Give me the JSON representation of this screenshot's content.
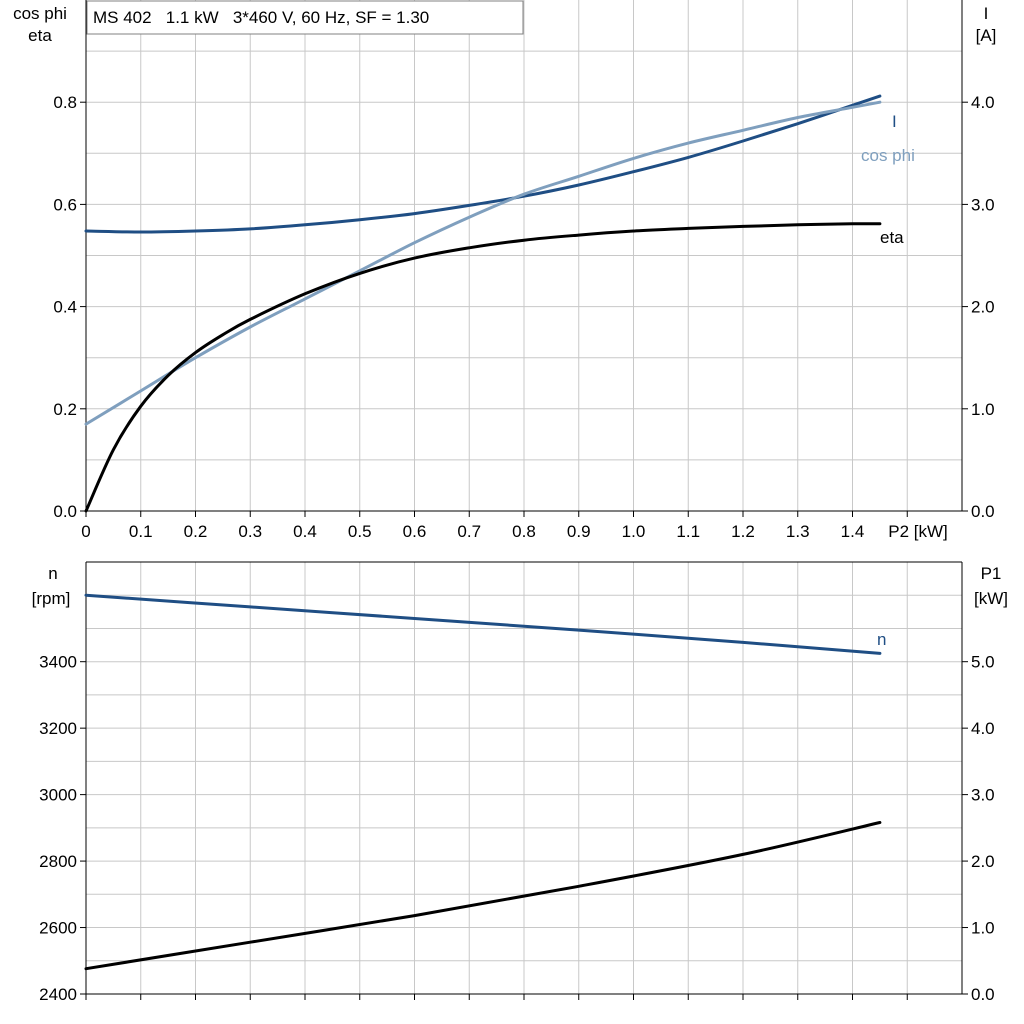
{
  "colors": {
    "I": "#1f4e84",
    "cos_phi": "#7f9fbe",
    "eta": "#000000",
    "n": "#1f4e84",
    "P1": "#000000",
    "grid": "#c8c8c8"
  },
  "chart_data": [
    {
      "type": "line",
      "title": "MS 402   1.1 kW   3*460 V, 60 Hz, SF = 1.30",
      "xlabel": "P2 [kW]",
      "ylabel_left": [
        "cos phi",
        "eta"
      ],
      "ylabel_right": [
        "I",
        "[A]"
      ],
      "xlim": [
        0,
        1.6
      ],
      "ylim_left": [
        0,
        1.0
      ],
      "ylim_right": [
        0,
        5.0
      ],
      "x_ticks": [
        0,
        0.1,
        0.2,
        0.3,
        0.4,
        0.5,
        0.6,
        0.7,
        0.8,
        0.9,
        1.0,
        1.1,
        1.2,
        1.3,
        1.4
      ],
      "x_tick_labels": [
        "0",
        "0.1",
        "0.2",
        "0.3",
        "0.4",
        "0.5",
        "0.6",
        "0.7",
        "0.8",
        "0.9",
        "1.0",
        "1.1",
        "1.2",
        "1.3",
        "1.4"
      ],
      "left_ticks": [
        0,
        0.2,
        0.4,
        0.6,
        0.8
      ],
      "left_tick_labels": [
        "0.0",
        "0.2",
        "0.4",
        "0.6",
        "0.8"
      ],
      "right_ticks": [
        0,
        1,
        2,
        3,
        4
      ],
      "right_tick_labels": [
        "0.0",
        "1.0",
        "2.0",
        "3.0",
        "4.0"
      ],
      "grid": true,
      "series": [
        {
          "name": "I",
          "axis": "right",
          "x": [
            0,
            0.1,
            0.2,
            0.3,
            0.4,
            0.5,
            0.6,
            0.7,
            0.8,
            0.9,
            1.0,
            1.1,
            1.2,
            1.3,
            1.4,
            1.45
          ],
          "values": [
            2.74,
            2.73,
            2.74,
            2.76,
            2.8,
            2.85,
            2.91,
            2.99,
            3.08,
            3.19,
            3.32,
            3.46,
            3.62,
            3.79,
            3.97,
            4.06
          ]
        },
        {
          "name": "cos phi",
          "axis": "left",
          "x": [
            0,
            0.1,
            0.2,
            0.3,
            0.4,
            0.5,
            0.6,
            0.7,
            0.8,
            0.9,
            1.0,
            1.1,
            1.2,
            1.3,
            1.4,
            1.45
          ],
          "values": [
            0.17,
            0.235,
            0.3,
            0.36,
            0.415,
            0.47,
            0.525,
            0.575,
            0.62,
            0.655,
            0.69,
            0.72,
            0.745,
            0.77,
            0.79,
            0.8
          ]
        },
        {
          "name": "eta",
          "axis": "left",
          "x": [
            0,
            0.05,
            0.1,
            0.15,
            0.2,
            0.25,
            0.3,
            0.4,
            0.5,
            0.6,
            0.7,
            0.8,
            0.9,
            1.0,
            1.1,
            1.2,
            1.3,
            1.4,
            1.45
          ],
          "values": [
            0.0,
            0.12,
            0.205,
            0.265,
            0.31,
            0.345,
            0.375,
            0.425,
            0.465,
            0.495,
            0.515,
            0.53,
            0.54,
            0.548,
            0.553,
            0.557,
            0.56,
            0.562,
            0.562
          ]
        }
      ]
    },
    {
      "type": "line",
      "xlim": [
        0,
        1.6
      ],
      "ylabel_left": [
        "n",
        "[rpm]"
      ],
      "ylabel_right": [
        "P1",
        "[kW]"
      ],
      "ylim_left": [
        2400,
        3700
      ],
      "ylim_right": [
        0,
        6.5
      ],
      "left_ticks": [
        2400,
        2600,
        2800,
        3000,
        3200,
        3400
      ],
      "left_tick_labels": [
        "2400",
        "2600",
        "2800",
        "3000",
        "3200",
        "3400"
      ],
      "right_ticks": [
        0,
        1,
        2,
        3,
        4,
        5
      ],
      "right_tick_labels": [
        "0.0",
        "1.0",
        "2.0",
        "3.0",
        "4.0",
        "5.0"
      ],
      "grid": true,
      "series": [
        {
          "name": "n",
          "axis": "left",
          "x": [
            0,
            0.3,
            0.6,
            0.9,
            1.2,
            1.45
          ],
          "values": [
            3600,
            3565,
            3530,
            3495,
            3458,
            3425
          ]
        },
        {
          "axis": "right",
          "x": [
            0,
            0.3,
            0.6,
            0.9,
            1.2,
            1.45
          ],
          "values": [
            0.38,
            0.78,
            1.18,
            1.62,
            2.1,
            2.58
          ]
        }
      ]
    }
  ]
}
